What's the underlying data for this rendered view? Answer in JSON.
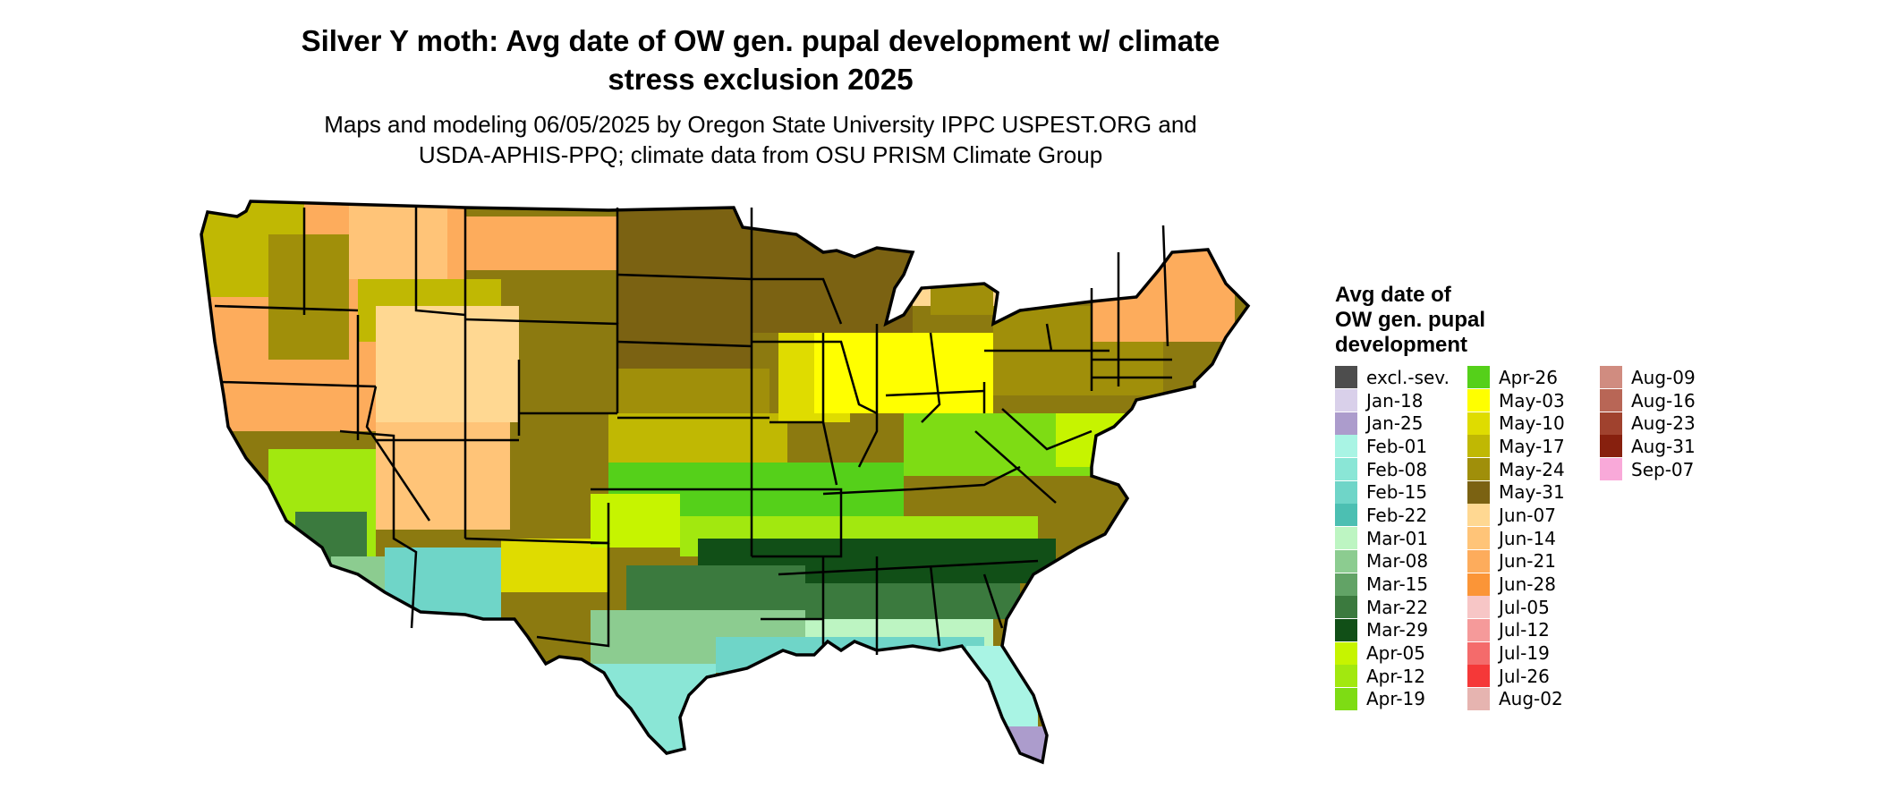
{
  "title_line1": "Silver Y moth: Avg date of OW gen. pupal development w/ climate",
  "title_line2": "stress exclusion 2025",
  "subtitle_line1": "Maps and modeling 06/05/2025 by Oregon State University IPPC USPEST.ORG and",
  "subtitle_line2": "USDA-APHIS-PPQ; climate data from OSU PRISM Climate Group",
  "legend": {
    "title_line1": "Avg date of",
    "title_line2": "OW gen. pupal",
    "title_line3": "development",
    "items": [
      {
        "label": "excl.-sev.",
        "color": "#4d4d4d"
      },
      {
        "label": "Jan-18",
        "color": "#d9d0ea"
      },
      {
        "label": "Jan-25",
        "color": "#ac9ccc"
      },
      {
        "label": "Feb-01",
        "color": "#a9f4e4"
      },
      {
        "label": "Feb-08",
        "color": "#8ae6d6"
      },
      {
        "label": "Feb-15",
        "color": "#6fd5c8"
      },
      {
        "label": "Feb-22",
        "color": "#4cbfb2"
      },
      {
        "label": "Mar-01",
        "color": "#bdf5c2"
      },
      {
        "label": "Mar-08",
        "color": "#8ccc90"
      },
      {
        "label": "Mar-15",
        "color": "#62a366"
      },
      {
        "label": "Mar-22",
        "color": "#3b7a3e"
      },
      {
        "label": "Mar-29",
        "color": "#114f17"
      },
      {
        "label": "Apr-05",
        "color": "#c6f400"
      },
      {
        "label": "Apr-12",
        "color": "#a2e80f"
      },
      {
        "label": "Apr-19",
        "color": "#7edc14"
      },
      {
        "label": "Apr-26",
        "color": "#55d01a"
      },
      {
        "label": "May-03",
        "color": "#ffff00"
      },
      {
        "label": "May-10",
        "color": "#dfdc00"
      },
      {
        "label": "May-17",
        "color": "#c0b803"
      },
      {
        "label": "May-24",
        "color": "#a08f0a"
      },
      {
        "label": "May-31",
        "color": "#7b6212"
      },
      {
        "label": "Jun-07",
        "color": "#ffd892"
      },
      {
        "label": "Jun-14",
        "color": "#ffc478"
      },
      {
        "label": "Jun-21",
        "color": "#fdac5c"
      },
      {
        "label": "Jun-28",
        "color": "#fb9537"
      },
      {
        "label": "Jul-05",
        "color": "#f7c6c6"
      },
      {
        "label": "Jul-12",
        "color": "#f59a9a"
      },
      {
        "label": "Jul-19",
        "color": "#f46b6b"
      },
      {
        "label": "Jul-26",
        "color": "#f53838"
      },
      {
        "label": "Aug-02",
        "color": "#e6b4b0"
      },
      {
        "label": "Aug-09",
        "color": "#d08c80"
      },
      {
        "label": "Aug-16",
        "color": "#b86656"
      },
      {
        "label": "Aug-23",
        "color": "#a0422e"
      },
      {
        "label": "Aug-31",
        "color": "#87200e"
      },
      {
        "label": "Sep-07",
        "color": "#f9a9d9"
      }
    ]
  }
}
